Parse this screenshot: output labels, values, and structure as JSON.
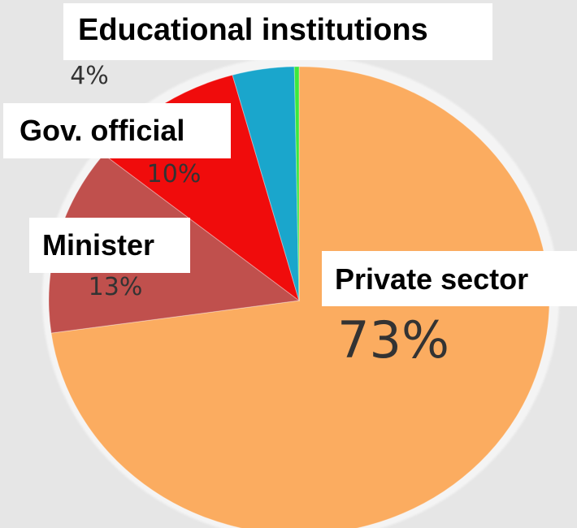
{
  "chart_data": {
    "type": "pie",
    "slices": [
      {
        "label": "Private sector",
        "value": 73,
        "value_label": "73%",
        "color": "#fbac60"
      },
      {
        "label": "Minister",
        "value": 13,
        "value_label": "13%",
        "color": "#c0504d"
      },
      {
        "label": "Gov. official",
        "value": 10,
        "value_label": "10%",
        "color": "#f00c0c"
      },
      {
        "label": "Educational institutions",
        "value": 4,
        "value_label": "4%",
        "color": "#1aa6cc"
      },
      {
        "label": "",
        "value": 0.3,
        "value_label": "",
        "color": "#3de83d"
      }
    ],
    "start_angle_deg": 0,
    "direction": "clockwise",
    "legend": "none"
  }
}
